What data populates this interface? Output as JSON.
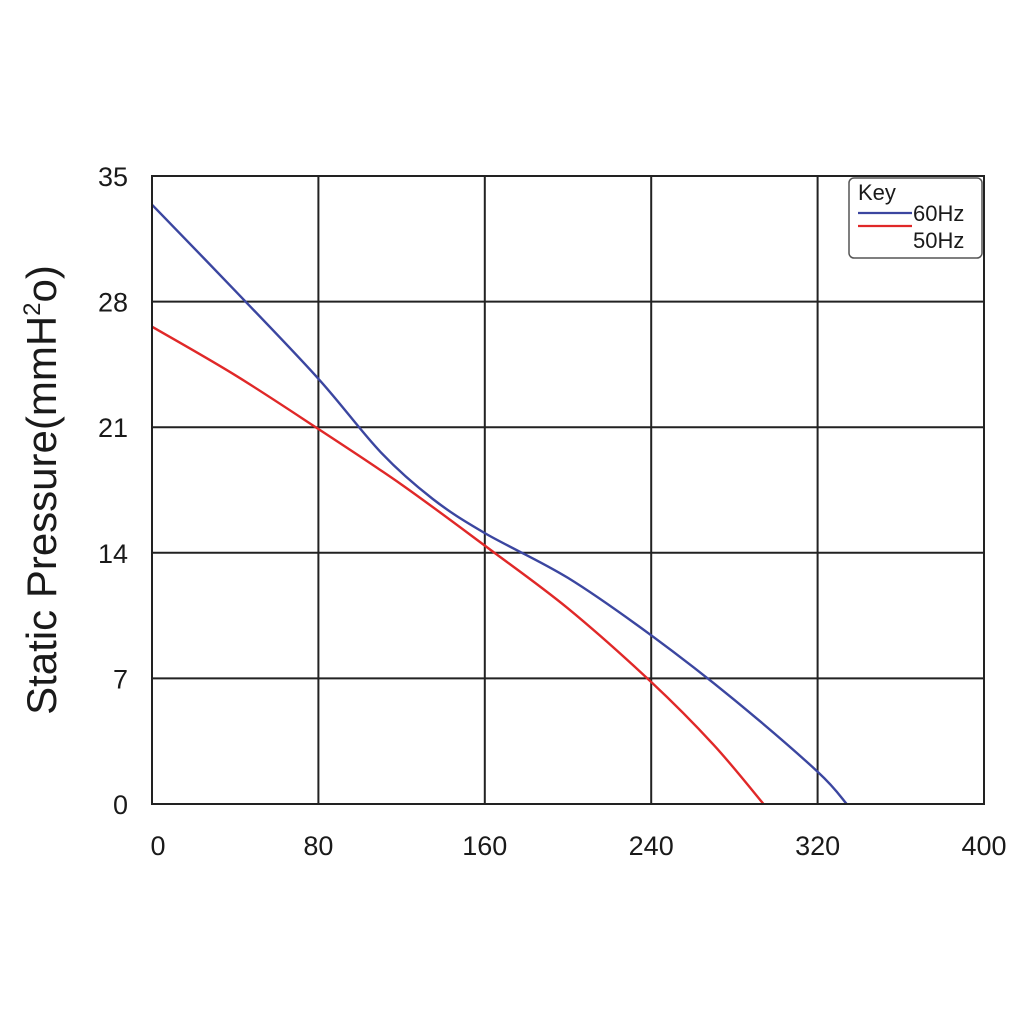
{
  "chart_data": {
    "type": "line",
    "title": "",
    "xlabel": "",
    "ylabel": {
      "main": "Static Pressure(mmH",
      "sup": "2",
      "tail": "o)"
    },
    "xlim": [
      0,
      400
    ],
    "ylim": [
      0,
      35
    ],
    "x_ticks": [
      "0",
      "80",
      "160",
      "240",
      "320",
      "400"
    ],
    "y_ticks": [
      "0",
      "7",
      "14",
      "21",
      "28",
      "35"
    ],
    "grid": true,
    "legend": {
      "title": "Key",
      "position": "top-right"
    },
    "series": [
      {
        "name": "60Hz",
        "color": "#3b46a0",
        "points": [
          [
            0,
            33.4
          ],
          [
            40,
            28.6
          ],
          [
            80,
            23.7
          ],
          [
            110,
            19.6
          ],
          [
            135,
            17.0
          ],
          [
            160,
            15.1
          ],
          [
            200,
            12.6
          ],
          [
            240,
            9.4
          ],
          [
            280,
            5.8
          ],
          [
            320,
            1.8
          ],
          [
            334,
            0
          ]
        ]
      },
      {
        "name": "50Hz",
        "color": "#e02828",
        "points": [
          [
            0,
            26.6
          ],
          [
            40,
            23.9
          ],
          [
            80,
            20.9
          ],
          [
            120,
            17.8
          ],
          [
            160,
            14.4
          ],
          [
            200,
            10.9
          ],
          [
            240,
            6.8
          ],
          [
            270,
            3.3
          ],
          [
            294,
            0
          ]
        ]
      }
    ]
  }
}
